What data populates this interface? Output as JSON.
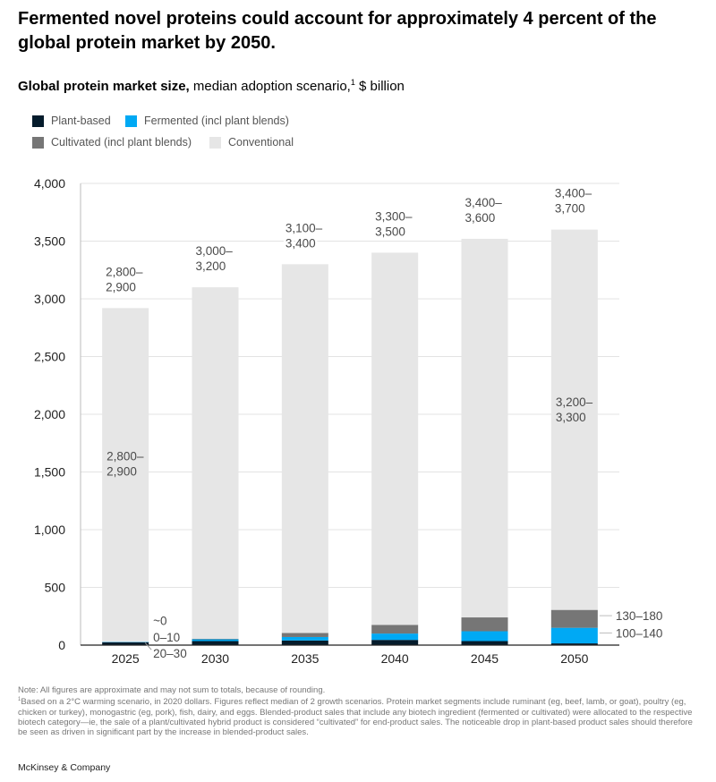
{
  "headline": "Fermented novel proteins could account for approximately 4 percent of the global protein market by 2050.",
  "subtitle": {
    "bold": "Global protein market size,",
    "rest": " median adoption scenario,",
    "sup": "1",
    "unit": " $ billion"
  },
  "colors": {
    "plant": "#051c2c",
    "fermented": "#00a9f4",
    "cultivated": "#767676",
    "conventional": "#e6e6e6",
    "grid": "#e3e3e3",
    "axis": "#222222",
    "label": "#4a4a4a"
  },
  "legend": [
    {
      "key": "plant",
      "label": "Plant-based"
    },
    {
      "key": "fermented",
      "label": "Fermented (incl plant blends)"
    },
    {
      "key": "cultivated",
      "label": "Cultivated (incl plant blends)"
    },
    {
      "key": "conventional",
      "label": "Conventional"
    }
  ],
  "chart_data": {
    "type": "bar",
    "stacked": true,
    "categories": [
      "2025",
      "2030",
      "2035",
      "2040",
      "2045",
      "2050"
    ],
    "ylim": [
      0,
      4000
    ],
    "yticks": [
      0,
      500,
      1000,
      1500,
      2000,
      2500,
      3000,
      3500,
      4000
    ],
    "ytick_labels": [
      "0",
      "500",
      "1,000",
      "1,500",
      "2,000",
      "2,500",
      "3,000",
      "3,500",
      "4,000"
    ],
    "series": [
      {
        "name": "Plant-based",
        "key": "plant",
        "values": [
          25,
          35,
          40,
          45,
          35,
          15
        ]
      },
      {
        "name": "Fermented (incl plant blends)",
        "key": "fermented",
        "values": [
          3,
          15,
          30,
          55,
          85,
          135
        ]
      },
      {
        "name": "Cultivated (incl plant blends)",
        "key": "cultivated",
        "values": [
          0,
          5,
          35,
          75,
          120,
          155
        ]
      },
      {
        "name": "Conventional",
        "key": "conventional",
        "values": [
          2892,
          3045,
          3195,
          3225,
          3280,
          3295
        ]
      }
    ],
    "total_labels": [
      "2,800–\n2,900",
      "3,000–\n3,200",
      "3,100–\n3,400",
      "3,300–\n3,500",
      "3,400–\n3,600",
      "3,400–\n3,700"
    ],
    "annotations": [
      {
        "text": "2,800–\n2,900",
        "category": "2025",
        "value": 1600
      },
      {
        "text": "3,200–\n3,300",
        "category": "2050",
        "value": 2070
      },
      {
        "text": "~0",
        "category": "2025",
        "value": 215,
        "side": "right"
      },
      {
        "text": "0–10",
        "category": "2025",
        "value": 70,
        "side": "right"
      },
      {
        "text": "20–30",
        "category": "2025",
        "value": -70,
        "side": "right"
      },
      {
        "text": "130–180",
        "category": "2050",
        "value": 255,
        "side": "outside"
      },
      {
        "text": "100–140",
        "category": "2050",
        "value": 105,
        "side": "outside"
      }
    ]
  },
  "notes": {
    "note": "Note: All figures are approximate and may not sum to totals, because of rounding.",
    "footnote_sup": "1",
    "footnote": "Based on a 2°C warming scenario, in 2020 dollars. Figures reflect median of 2 growth scenarios. Protein market segments include ruminant (eg, beef, lamb, or goat), poultry (eg, chicken or turkey), monogastric (eg, pork), fish, dairy, and eggs. Blended-product sales that include any biotech ingredient (fermented or cultivated) were allocated to the respective biotech category—ie, the sale of a plant/cultivated hybrid product is considered “cultivated” for end-product sales. The noticeable drop in plant-based product sales should therefore be seen as driven in significant part by the increase in blended-product sales."
  },
  "source": "McKinsey & Company"
}
